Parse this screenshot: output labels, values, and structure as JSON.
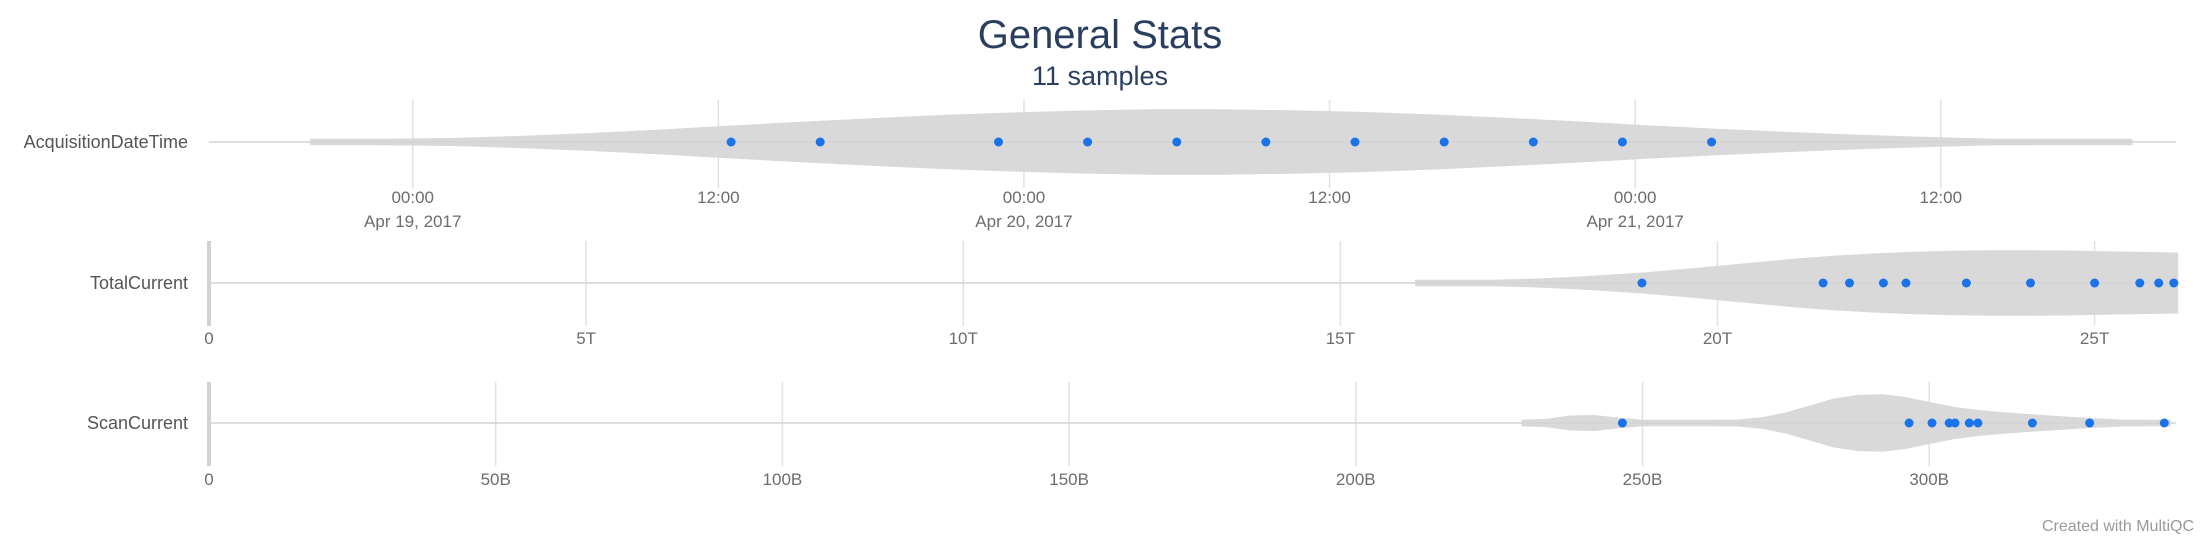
{
  "chart_data": {
    "type": "violin",
    "title": "General Stats",
    "subtitle": "11 samples",
    "credit": "Created with MultiQC",
    "colors": {
      "point": "#1a73e8",
      "violin": "#d9d9d9",
      "grid": "#e2e2e2",
      "text": "#2a3f5f"
    },
    "panels": [
      {
        "label": "AcquisitionDateTime",
        "axis": "time",
        "xlim": [
          "2017-04-18T16:00:00",
          "2017-04-21T21:00:00"
        ],
        "ticks": [
          {
            "time": "00:00",
            "date": "Apr 19, 2017",
            "value": "2017-04-19T00:00:00"
          },
          {
            "time": "12:00",
            "date": "",
            "value": "2017-04-19T12:00:00"
          },
          {
            "time": "00:00",
            "date": "Apr 20, 2017",
            "value": "2017-04-20T00:00:00"
          },
          {
            "time": "12:00",
            "date": "",
            "value": "2017-04-20T12:00:00"
          },
          {
            "time": "00:00",
            "date": "Apr 21, 2017",
            "value": "2017-04-21T00:00:00"
          },
          {
            "time": "12:00",
            "date": "",
            "value": "2017-04-21T12:00:00"
          }
        ],
        "values": [
          "2017-04-19T12:30:00",
          "2017-04-19T16:00:00",
          "2017-04-19T23:00:00",
          "2017-04-20T02:30:00",
          "2017-04-20T06:00:00",
          "2017-04-20T09:30:00",
          "2017-04-20T13:00:00",
          "2017-04-20T16:30:00",
          "2017-04-20T20:00:00",
          "2017-04-20T23:30:00",
          "2017-04-21T03:00:00"
        ],
        "violin": {
          "range": [
            "2017-04-18T20:00:00",
            "2017-04-21T19:30:00"
          ],
          "profile": [
            0.02,
            0.05,
            0.1,
            0.17,
            0.26,
            0.37,
            0.49,
            0.61,
            0.72,
            0.82,
            0.9,
            0.96,
            1.0,
            1.0,
            0.97,
            0.92,
            0.84,
            0.74,
            0.63,
            0.51,
            0.4,
            0.3,
            0.21,
            0.14,
            0.08,
            0.04,
            0.02
          ]
        }
      },
      {
        "label": "TotalCurrent",
        "axis": "linear",
        "xlim": [
          0,
          26
        ],
        "ticks": [
          {
            "value": 0,
            "label": "0"
          },
          {
            "value": 5,
            "label": "5T"
          },
          {
            "value": 10,
            "label": "10T"
          },
          {
            "value": 15,
            "label": "15T"
          },
          {
            "value": 20,
            "label": "20T"
          },
          {
            "value": 25,
            "label": "25T"
          }
        ],
        "values": [
          19.0,
          21.4,
          21.75,
          22.2,
          22.5,
          23.3,
          24.15,
          25.0,
          25.6,
          25.85,
          26.05
        ],
        "violin": {
          "range": [
            16.0,
            26.1
          ],
          "profile": [
            0.02,
            0.04,
            0.07,
            0.11,
            0.16,
            0.23,
            0.31,
            0.41,
            0.52,
            0.63,
            0.74,
            0.83,
            0.9,
            0.95,
            0.98,
            1.0,
            1.0,
            0.99,
            0.97,
            0.95,
            0.93
          ]
        }
      },
      {
        "label": "ScanCurrent",
        "axis": "linear",
        "xlim": [
          0,
          342
        ],
        "ticks": [
          {
            "value": 0,
            "label": "0"
          },
          {
            "value": 50,
            "label": "50B"
          },
          {
            "value": 100,
            "label": "100B"
          },
          {
            "value": 150,
            "label": "150B"
          },
          {
            "value": 200,
            "label": "200B"
          },
          {
            "value": 250,
            "label": "250B"
          },
          {
            "value": 300,
            "label": "300B"
          }
        ],
        "values": [
          246.5,
          296.5,
          300.5,
          303.5,
          304.5,
          307.0,
          308.5,
          318.0,
          328.0,
          341.0
        ],
        "violin": {
          "range": [
            229,
            342
          ],
          "profile": [
            0.03,
            0.12,
            0.24,
            0.26,
            0.17,
            0.09,
            0.07,
            0.06,
            0.07,
            0.1,
            0.18,
            0.35,
            0.6,
            0.85,
            0.98,
            1.0,
            0.9,
            0.72,
            0.55,
            0.44,
            0.36,
            0.3,
            0.24,
            0.19,
            0.14,
            0.1,
            0.07,
            0.05
          ]
        }
      }
    ]
  }
}
